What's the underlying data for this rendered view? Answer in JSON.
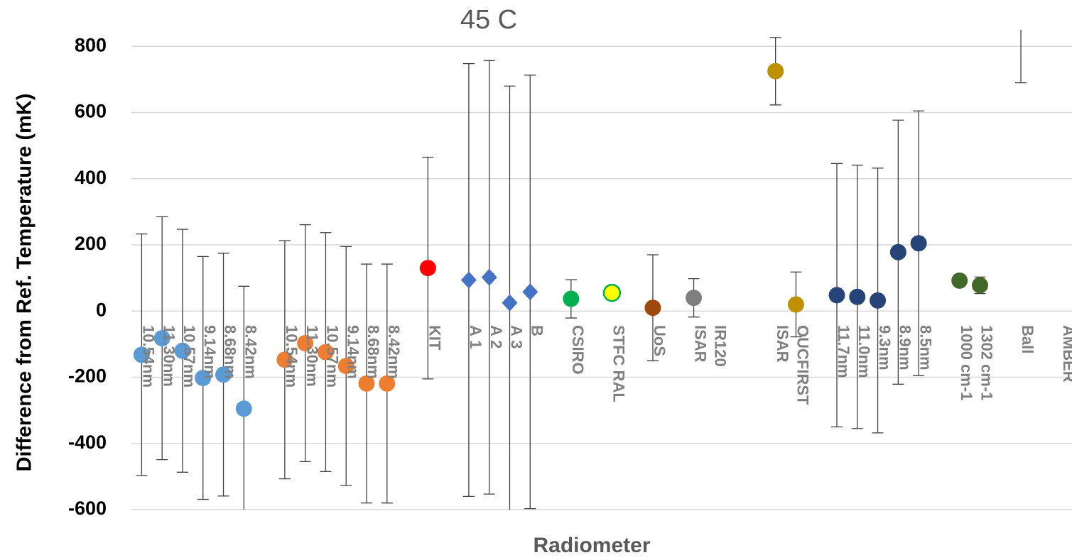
{
  "chart_data": {
    "type": "scatter",
    "title": "45 C",
    "x_label": "Radiometer",
    "y_label": "Difference from Ref. Temperature (mK)",
    "ylim": [
      -600,
      850
    ],
    "yticks": [
      -600,
      -400,
      -200,
      0,
      200,
      400,
      600,
      800
    ],
    "grid": true,
    "categories": [
      "10.54nm",
      "11.30nm",
      "10.57nm",
      "9.14nm",
      "8.68nm",
      "8.42nm",
      null,
      "10.54nm",
      "11.30nm",
      "10.57nm",
      "9.14nm",
      "8.68nm",
      "8.42nm",
      null,
      "KIT",
      null,
      "A 1",
      "A 2",
      "A 3",
      "B",
      null,
      "CSIRO",
      null,
      "STFC RAL",
      null,
      "UoS",
      null,
      "ISAR\nIR120",
      null,
      null,
      null,
      "ISAR",
      "OUCFIRST",
      null,
      "11.7nm",
      "11.0nm",
      "9.3nm",
      "8.9nm",
      "8.5nm",
      null,
      "1000 cm-1",
      "1302 cm-1",
      null,
      "Ball",
      null,
      "AMBER"
    ],
    "series": [
      {
        "color": "#5b9bd5",
        "marker": "circle",
        "values": [
          -132,
          -82,
          -120,
          -202,
          -192,
          -295,
          null,
          null,
          null,
          null,
          null,
          null,
          null,
          null,
          null,
          null,
          null,
          null,
          null,
          null,
          null,
          null,
          null,
          null,
          null,
          null,
          null,
          null,
          null,
          null,
          null,
          null,
          null,
          null,
          null,
          null,
          null,
          null,
          null,
          null,
          null,
          null,
          null,
          null,
          null,
          null
        ],
        "errors": [
          365,
          367,
          367,
          367,
          367,
          370,
          null,
          null,
          null,
          null,
          null,
          null,
          null,
          null,
          null,
          null,
          null,
          null,
          null,
          null,
          null,
          null,
          null,
          null,
          null,
          null,
          null,
          null,
          null,
          null,
          null,
          null,
          null,
          null,
          null,
          null,
          null,
          null,
          null,
          null,
          null,
          null,
          null,
          null,
          null,
          null
        ]
      },
      {
        "color": "#ed7d31",
        "marker": "circle",
        "values": [
          null,
          null,
          null,
          null,
          null,
          null,
          null,
          -147,
          -97,
          -124,
          -166,
          -219,
          -219,
          null,
          null,
          null,
          null,
          null,
          null,
          null,
          null,
          null,
          null,
          null,
          null,
          null,
          null,
          null,
          null,
          null,
          null,
          null,
          null,
          null,
          null,
          null,
          null,
          null,
          null,
          null,
          null,
          null,
          null,
          null,
          null,
          null
        ],
        "errors": [
          null,
          null,
          null,
          null,
          null,
          null,
          null,
          360,
          358,
          361,
          361,
          361,
          361,
          null,
          null,
          null,
          null,
          null,
          null,
          null,
          null,
          null,
          null,
          null,
          null,
          null,
          null,
          null,
          null,
          null,
          null,
          null,
          null,
          null,
          null,
          null,
          null,
          null,
          null,
          null,
          null,
          null,
          null,
          null,
          null,
          null
        ]
      },
      {
        "color": "#ff0000",
        "marker": "circle",
        "values": [
          null,
          null,
          null,
          null,
          null,
          null,
          null,
          null,
          null,
          null,
          null,
          null,
          null,
          null,
          130,
          null,
          null,
          null,
          null,
          null,
          null,
          null,
          null,
          null,
          null,
          null,
          null,
          null,
          null,
          null,
          null,
          null,
          null,
          null,
          null,
          null,
          null,
          null,
          null,
          null,
          null,
          null,
          null,
          null,
          null,
          null
        ],
        "errors": [
          null,
          null,
          null,
          null,
          null,
          null,
          null,
          null,
          null,
          null,
          null,
          null,
          null,
          null,
          335,
          null,
          null,
          null,
          null,
          null,
          null,
          null,
          null,
          null,
          null,
          null,
          null,
          null,
          null,
          null,
          null,
          null,
          null,
          null,
          null,
          null,
          null,
          null,
          null,
          null,
          null,
          null,
          null,
          null,
          null,
          null
        ]
      },
      {
        "color": "#4472c4",
        "marker": "diamond",
        "values": [
          null,
          null,
          null,
          null,
          null,
          null,
          null,
          null,
          null,
          null,
          null,
          null,
          null,
          null,
          null,
          null,
          94,
          102,
          25,
          58,
          null,
          null,
          null,
          null,
          null,
          null,
          null,
          null,
          null,
          null,
          null,
          null,
          null,
          null,
          null,
          null,
          null,
          null,
          null,
          null,
          null,
          null,
          null,
          null,
          null,
          null
        ],
        "errors": [
          null,
          null,
          null,
          null,
          null,
          null,
          null,
          null,
          null,
          null,
          null,
          null,
          null,
          null,
          null,
          null,
          654,
          655,
          655,
          655,
          null,
          null,
          null,
          null,
          null,
          null,
          null,
          null,
          null,
          null,
          null,
          null,
          null,
          null,
          null,
          null,
          null,
          null,
          null,
          null,
          null,
          null,
          null,
          null,
          null,
          null
        ]
      },
      {
        "color": "#00b050",
        "marker": "circle",
        "values": [
          null,
          null,
          null,
          null,
          null,
          null,
          null,
          null,
          null,
          null,
          null,
          null,
          null,
          null,
          null,
          null,
          null,
          null,
          null,
          null,
          null,
          37,
          null,
          55,
          null,
          null,
          null,
          null,
          null,
          null,
          null,
          null,
          null,
          null,
          null,
          null,
          null,
          null,
          null,
          null,
          null,
          null,
          null,
          null,
          null,
          null
        ],
        "errors": [
          null,
          null,
          null,
          null,
          null,
          null,
          null,
          null,
          null,
          null,
          null,
          null,
          null,
          null,
          null,
          null,
          null,
          null,
          null,
          null,
          null,
          58,
          null,
          10,
          null,
          null,
          null,
          null,
          null,
          null,
          null,
          null,
          null,
          null,
          null,
          null,
          null,
          null,
          null,
          null,
          null,
          null,
          null,
          null,
          null,
          null
        ],
        "point_colors": [
          null,
          null,
          null,
          null,
          null,
          null,
          null,
          null,
          null,
          null,
          null,
          null,
          null,
          null,
          null,
          null,
          null,
          null,
          null,
          null,
          null,
          "#00b050",
          null,
          "#ffff00",
          null,
          null,
          null,
          null,
          null,
          null,
          null,
          null,
          null,
          null,
          null,
          null,
          null,
          null,
          null,
          null,
          null,
          null,
          null,
          null,
          null,
          null
        ]
      },
      {
        "color": "#9e480e",
        "marker": "circle",
        "values": [
          null,
          null,
          null,
          null,
          null,
          null,
          null,
          null,
          null,
          null,
          null,
          null,
          null,
          null,
          null,
          null,
          null,
          null,
          null,
          null,
          null,
          null,
          null,
          null,
          null,
          10,
          null,
          null,
          null,
          null,
          null,
          null,
          null,
          null,
          null,
          null,
          null,
          null,
          null,
          null,
          null,
          null,
          null,
          null,
          null,
          null
        ],
        "errors": [
          null,
          null,
          null,
          null,
          null,
          null,
          null,
          null,
          null,
          null,
          null,
          null,
          null,
          null,
          null,
          null,
          null,
          null,
          null,
          null,
          null,
          null,
          null,
          null,
          null,
          160,
          null,
          null,
          null,
          null,
          null,
          null,
          null,
          null,
          null,
          null,
          null,
          null,
          null,
          null,
          null,
          null,
          null,
          null,
          null,
          null
        ]
      },
      {
        "color": "#7f7f7f",
        "marker": "circle",
        "values": [
          null,
          null,
          null,
          null,
          null,
          null,
          null,
          null,
          null,
          null,
          null,
          null,
          null,
          null,
          null,
          null,
          null,
          null,
          null,
          null,
          null,
          null,
          null,
          null,
          null,
          null,
          null,
          40,
          null,
          null,
          null,
          null,
          null,
          null,
          null,
          null,
          null,
          null,
          null,
          null,
          null,
          null,
          null,
          null,
          null,
          null
        ],
        "errors": [
          null,
          null,
          null,
          null,
          null,
          null,
          null,
          null,
          null,
          null,
          null,
          null,
          null,
          null,
          null,
          null,
          null,
          null,
          null,
          null,
          null,
          null,
          null,
          null,
          null,
          null,
          null,
          58,
          null,
          null,
          null,
          null,
          null,
          null,
          null,
          null,
          null,
          null,
          null,
          null,
          null,
          null,
          null,
          null,
          null,
          null
        ]
      },
      {
        "color": "#bf9000",
        "marker": "circle",
        "values": [
          null,
          null,
          null,
          null,
          null,
          null,
          null,
          null,
          null,
          null,
          null,
          null,
          null,
          null,
          null,
          null,
          null,
          null,
          null,
          null,
          null,
          null,
          null,
          null,
          null,
          null,
          null,
          null,
          null,
          null,
          null,
          725,
          20,
          null,
          null,
          null,
          null,
          null,
          null,
          null,
          null,
          null,
          null,
          null,
          null,
          null
        ],
        "errors": [
          null,
          null,
          null,
          null,
          null,
          null,
          null,
          null,
          null,
          null,
          null,
          null,
          null,
          null,
          null,
          null,
          null,
          null,
          null,
          null,
          null,
          null,
          null,
          null,
          null,
          null,
          null,
          null,
          null,
          null,
          null,
          102,
          98,
          null,
          null,
          null,
          null,
          null,
          null,
          null,
          null,
          null,
          null,
          null,
          null,
          null
        ]
      },
      {
        "color": "#264478",
        "marker": "circle",
        "values": [
          null,
          null,
          null,
          null,
          null,
          null,
          null,
          null,
          null,
          null,
          null,
          null,
          null,
          null,
          null,
          null,
          null,
          null,
          null,
          null,
          null,
          null,
          null,
          null,
          null,
          null,
          null,
          null,
          null,
          null,
          null,
          null,
          null,
          null,
          48,
          43,
          32,
          178,
          205,
          null,
          null,
          null,
          null,
          null,
          null,
          null
        ],
        "errors": [
          null,
          null,
          null,
          null,
          null,
          null,
          null,
          null,
          null,
          null,
          null,
          null,
          null,
          null,
          null,
          null,
          null,
          null,
          null,
          null,
          null,
          null,
          null,
          null,
          null,
          null,
          null,
          null,
          null,
          null,
          null,
          null,
          null,
          null,
          398,
          398,
          400,
          399,
          400,
          null,
          null,
          null,
          null,
          null,
          null,
          null
        ]
      },
      {
        "color": "#43682b",
        "marker": "circle",
        "values": [
          null,
          null,
          null,
          null,
          null,
          null,
          null,
          null,
          null,
          null,
          null,
          null,
          null,
          null,
          null,
          null,
          null,
          null,
          null,
          null,
          null,
          null,
          null,
          null,
          null,
          null,
          null,
          null,
          null,
          null,
          null,
          null,
          null,
          null,
          null,
          null,
          null,
          null,
          null,
          null,
          92,
          78,
          null,
          900,
          null,
          null
        ],
        "errors": [
          null,
          null,
          null,
          null,
          null,
          null,
          null,
          null,
          null,
          null,
          null,
          null,
          null,
          null,
          null,
          null,
          null,
          null,
          null,
          null,
          null,
          null,
          null,
          null,
          null,
          null,
          null,
          null,
          null,
          null,
          null,
          null,
          null,
          null,
          null,
          null,
          null,
          null,
          null,
          null,
          15,
          25,
          null,
          210,
          null,
          null
        ]
      }
    ]
  }
}
